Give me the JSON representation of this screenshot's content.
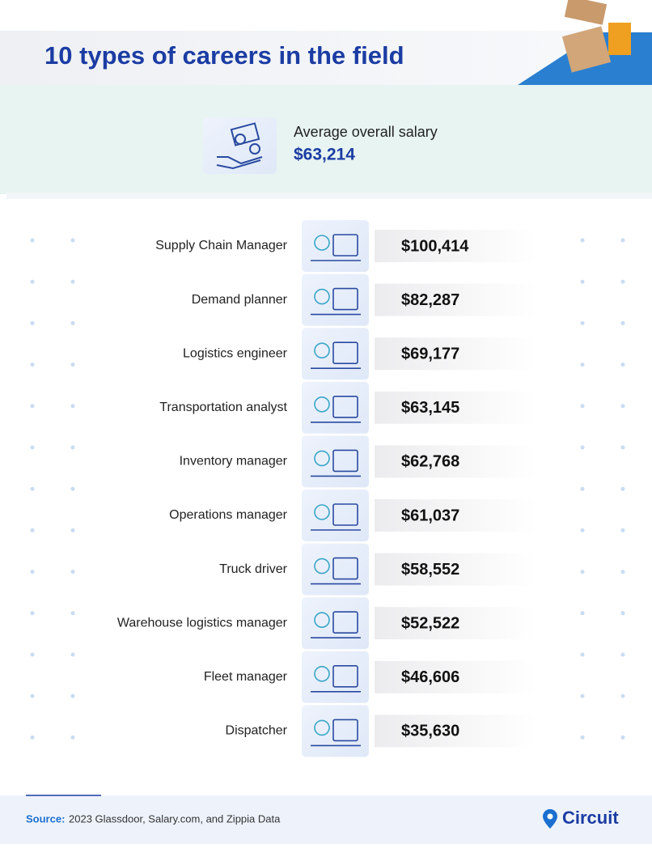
{
  "header": {
    "title": "10 types of careers in the field"
  },
  "summary": {
    "label": "Average overall salary",
    "value": "$63,214"
  },
  "careers": [
    {
      "name": "Supply Chain Manager",
      "salary": "$100,414"
    },
    {
      "name": "Demand planner",
      "salary": "$82,287"
    },
    {
      "name": "Logistics engineer",
      "salary": "$69,177"
    },
    {
      "name": "Transportation analyst",
      "salary": "$63,145"
    },
    {
      "name": "Inventory manager",
      "salary": "$62,768"
    },
    {
      "name": "Operations manager",
      "salary": "$61,037"
    },
    {
      "name": "Truck driver",
      "salary": "$58,552"
    },
    {
      "name": "Warehouse logistics manager",
      "salary": "$52,522"
    },
    {
      "name": "Fleet manager",
      "salary": "$46,606"
    },
    {
      "name": "Dispatcher",
      "salary": "$35,630"
    }
  ],
  "footer": {
    "source_label": "Source:",
    "source_text": "2023 Glassdoor, Salary.com, and Zippia Data",
    "brand": "Circuit"
  }
}
